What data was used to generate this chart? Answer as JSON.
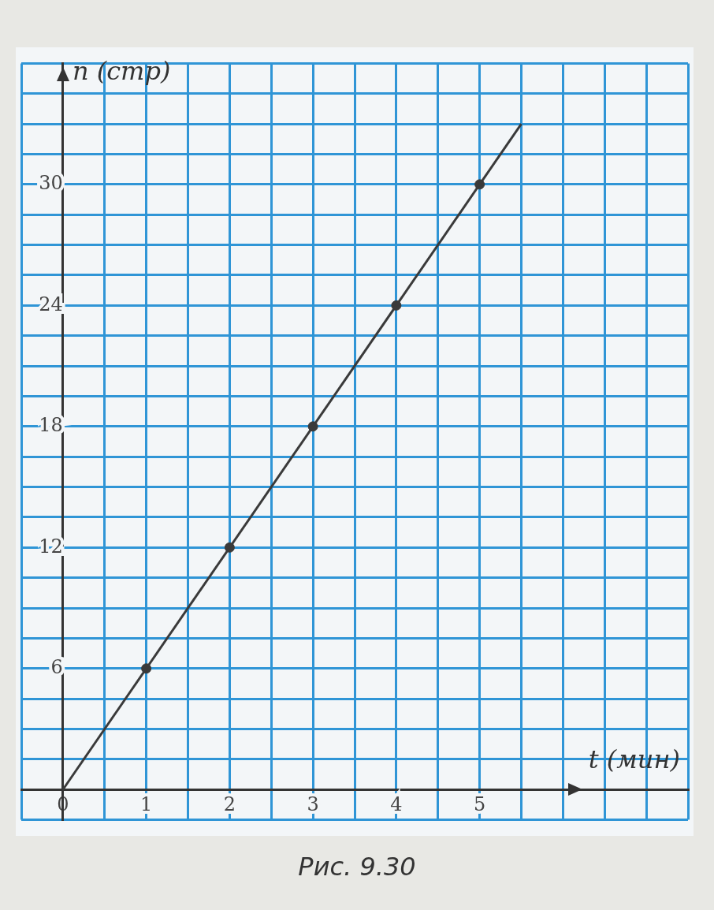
{
  "chart_data": {
    "type": "line",
    "xlabel": "t (мин)",
    "ylabel": "n (стр)",
    "annotations": [
      "Рис. 9.30"
    ],
    "xlim": [
      -0.5,
      7.5
    ],
    "ylim": [
      -1.5,
      36
    ],
    "xticks": [
      {
        "value": -0.5,
        "label": null
      },
      {
        "value": 0,
        "label": "0"
      },
      {
        "value": 0.5,
        "label": null
      },
      1,
      {
        "value": 1.5,
        "label": null
      },
      2,
      {
        "value": 2.5,
        "label": null
      },
      3,
      {
        "value": 3.5,
        "label": null
      },
      4,
      {
        "value": 4.5,
        "label": null
      },
      5,
      {
        "value": 5.5,
        "label": null
      },
      {
        "value": 6,
        "label": null
      },
      {
        "value": 6.5,
        "label": null
      },
      {
        "value": 7,
        "label": null
      },
      {
        "value": 7.5,
        "label": null
      }
    ],
    "yticks": [
      {
        "value": -1.5,
        "label": null
      },
      {
        "value": 0,
        "label": null
      },
      {
        "value": 1.5,
        "label": null
      },
      {
        "value": 3,
        "label": null
      },
      {
        "value": 4.5,
        "label": null
      },
      6,
      {
        "value": 7.5,
        "label": null
      },
      {
        "value": 9,
        "label": null
      },
      {
        "value": 10.5,
        "label": null
      },
      12,
      {
        "value": 13.5,
        "label": null
      },
      {
        "value": 15,
        "label": null
      },
      {
        "value": 16.5,
        "label": null
      },
      18,
      {
        "value": 19.5,
        "label": null
      },
      {
        "value": 21,
        "label": null
      },
      {
        "value": 22.5,
        "label": null
      },
      24,
      {
        "value": 25.5,
        "label": null
      },
      {
        "value": 27,
        "label": null
      },
      {
        "value": 28.5,
        "label": null
      },
      30,
      {
        "value": 31.5,
        "label": null
      },
      {
        "value": 33,
        "label": null
      },
      {
        "value": 34.5,
        "label": null
      },
      {
        "value": 36,
        "label": null
      }
    ],
    "grid": true,
    "legend": false,
    "series": [
      {
        "color": "#3a3a3a",
        "marker": "none",
        "x": [
          0,
          5.5
        ],
        "values": [
          0,
          33
        ]
      },
      {
        "type": "scatter",
        "color": "#3a3a3a",
        "marker": "circle",
        "x": [
          1,
          2,
          3,
          4,
          5
        ],
        "values": [
          6,
          12,
          18,
          24,
          30
        ]
      }
    ]
  }
}
